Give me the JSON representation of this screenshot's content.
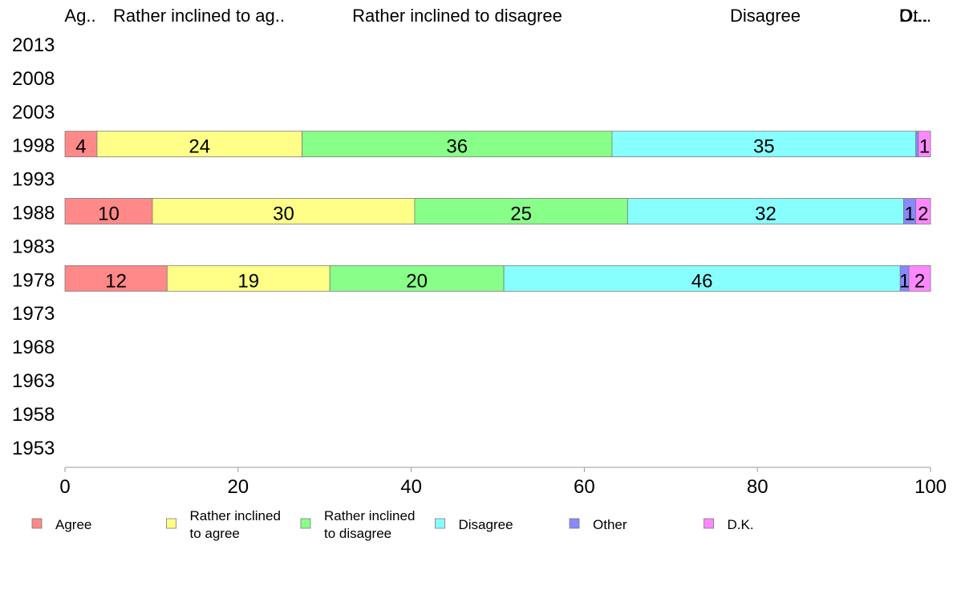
{
  "chart_data": {
    "type": "bar",
    "orientation": "horizontal",
    "stacked": true,
    "title": "",
    "xlabel": "",
    "ylabel": "",
    "xlim": [
      0,
      100
    ],
    "x_ticks": [
      "0",
      "20",
      "40",
      "60",
      "80",
      "100"
    ],
    "categories": [
      "2013",
      "2008",
      "2003",
      "1998",
      "1993",
      "1988",
      "1983",
      "1978",
      "1973",
      "1968",
      "1963",
      "1958",
      "1953"
    ],
    "column_headers": [
      "Ag..",
      "Rather inclined to ag..",
      "Rather inclined to disagree",
      "Disagree",
      "Ot..",
      "D...."
    ],
    "series": [
      {
        "name": "Agree",
        "color": "#ff8888",
        "values": [
          null,
          null,
          null,
          3.7,
          null,
          10.1,
          null,
          11.8,
          null,
          null,
          null,
          null,
          null
        ],
        "labels": [
          "",
          "",
          "",
          "4",
          "",
          "10",
          "",
          "12",
          "",
          "",
          "",
          "",
          ""
        ]
      },
      {
        "name": "Rather inclined to agree",
        "color": "#ffff88",
        "values": [
          null,
          null,
          null,
          23.7,
          null,
          30.3,
          null,
          18.8,
          null,
          null,
          null,
          null,
          null
        ],
        "labels": [
          "",
          "",
          "",
          "24",
          "",
          "30",
          "",
          "19",
          "",
          "",
          "",
          "",
          ""
        ]
      },
      {
        "name": "Rather inclined to disagree",
        "color": "#88ff88",
        "values": [
          null,
          null,
          null,
          35.8,
          null,
          24.6,
          null,
          20.1,
          null,
          null,
          null,
          null,
          null
        ],
        "labels": [
          "",
          "",
          "",
          "36",
          "",
          "25",
          "",
          "20",
          "",
          "",
          "",
          "",
          ""
        ]
      },
      {
        "name": "Disagree",
        "color": "#88ffff",
        "values": [
          null,
          null,
          null,
          35.1,
          null,
          31.9,
          null,
          45.8,
          null,
          null,
          null,
          null,
          null
        ],
        "labels": [
          "",
          "",
          "",
          "35",
          "",
          "32",
          "",
          "46",
          "",
          "",
          "",
          "",
          ""
        ]
      },
      {
        "name": "Other",
        "color": "#8888ff",
        "values": [
          null,
          null,
          null,
          0.3,
          null,
          1.4,
          null,
          1.0,
          null,
          null,
          null,
          null,
          null
        ],
        "labels": [
          "",
          "",
          "",
          "",
          "",
          "1",
          "",
          "1",
          "",
          "",
          "",
          "",
          ""
        ]
      },
      {
        "name": "D.K.",
        "color": "#ff88ff",
        "values": [
          null,
          null,
          null,
          1.4,
          null,
          1.7,
          null,
          2.5,
          null,
          null,
          null,
          null,
          null
        ],
        "labels": [
          "",
          "",
          "",
          "1",
          "",
          "2",
          "",
          "2",
          "",
          "",
          "",
          "",
          ""
        ]
      }
    ],
    "legend": {
      "placement": "bottom",
      "entries": [
        {
          "lines": [
            "Agree"
          ],
          "color": "#ff8888"
        },
        {
          "lines": [
            "Rather inclined",
            "to agree"
          ],
          "color": "#ffff88"
        },
        {
          "lines": [
            "Rather inclined",
            "to disagree"
          ],
          "color": "#88ff88"
        },
        {
          "lines": [
            "Disagree"
          ],
          "color": "#88ffff"
        },
        {
          "lines": [
            "Other"
          ],
          "color": "#8888ff"
        },
        {
          "lines": [
            "D.K."
          ],
          "color": "#ff88ff"
        }
      ]
    },
    "grid": false
  }
}
